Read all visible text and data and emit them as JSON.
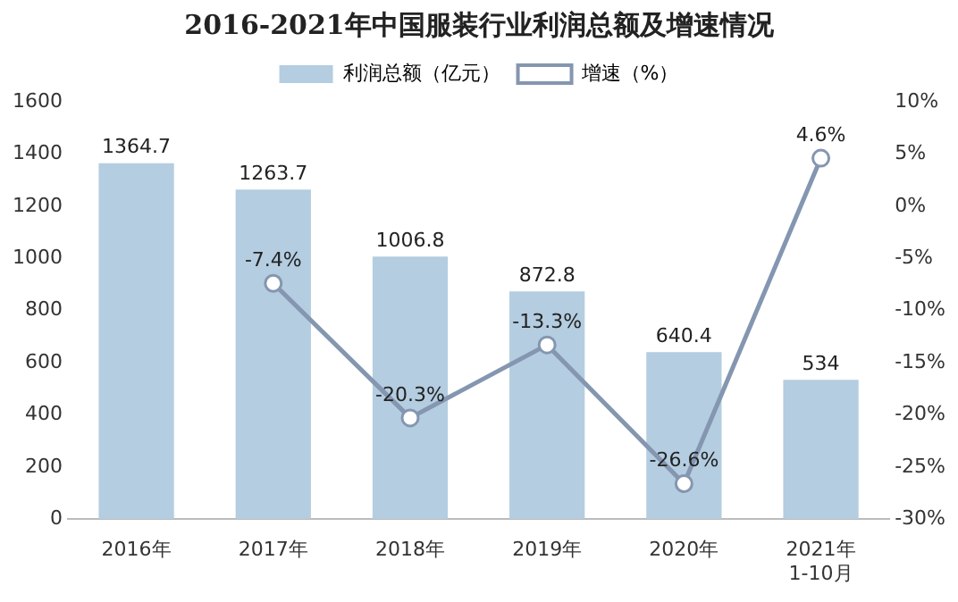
{
  "chart_data": {
    "type": "bar",
    "title": "2016-2021年中国服装行业利润总额及增速情况",
    "categories": [
      "2016年",
      "2017年",
      "2018年",
      "2019年",
      "2020年",
      "2021年\n1-10月"
    ],
    "series": [
      {
        "name": "利润总额（亿元）",
        "color": "#b4cde0",
        "values": [
          1364.7,
          1263.7,
          1006.8,
          872.8,
          640.4,
          534
        ],
        "value_labels": [
          "1364.7",
          "1263.7",
          "1006.8",
          "872.8",
          "640.4",
          "534"
        ]
      },
      {
        "name": "增速（%）",
        "type": "line",
        "axis": "y2",
        "color": "#8496b0",
        "values": [
          null,
          -7.4,
          -20.3,
          -13.3,
          -26.6,
          4.6
        ],
        "value_labels": [
          null,
          "-7.4%",
          "-20.3%",
          "-13.3%",
          "-26.6%",
          "4.6%"
        ]
      }
    ],
    "ylim": [
      0,
      1600
    ],
    "yticks": [
      0,
      200,
      400,
      600,
      800,
      1000,
      1200,
      1400,
      1600
    ],
    "y2lim": [
      -30,
      10
    ],
    "y2ticks": [
      {
        "value": -30,
        "label": "-30%"
      },
      {
        "value": -25,
        "label": "-25%"
      },
      {
        "value": -20,
        "label": "-20%"
      },
      {
        "value": -15,
        "label": "-15%"
      },
      {
        "value": -10,
        "label": "-10%"
      },
      {
        "value": -5,
        "label": "-5%"
      },
      {
        "value": 0,
        "label": "0%"
      },
      {
        "value": 5,
        "label": "5%"
      },
      {
        "value": 10,
        "label": "10%"
      }
    ],
    "legend": "top",
    "grid": false,
    "marker": "circle",
    "line_style": "solid"
  }
}
